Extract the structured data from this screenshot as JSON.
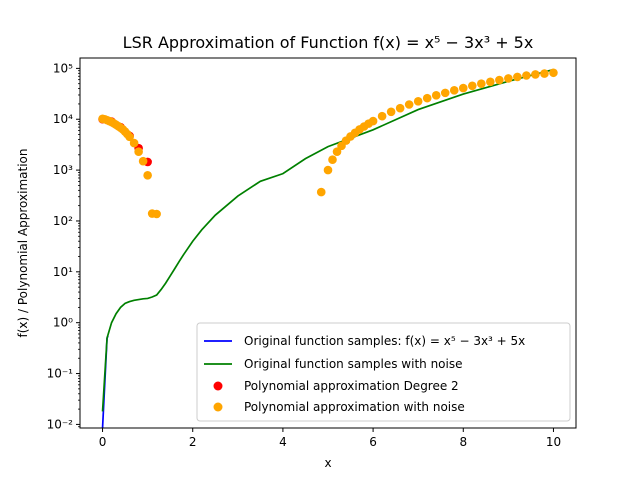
{
  "chart_data": {
    "type": "line",
    "title": "LSR Approximation of Function f(x) = x⁵ − 3x³ + 5x",
    "xlabel": "x",
    "ylabel": "f(x) / Polynomial Approximation",
    "xlim": [
      -0.5,
      10.5
    ],
    "ylim": [
      0.0085,
      160000
    ],
    "yscale": "log",
    "x_ticks": [
      0,
      2,
      4,
      6,
      8,
      10
    ],
    "x_tick_labels": [
      "0",
      "2",
      "4",
      "6",
      "8",
      "10"
    ],
    "y_ticks": [
      0.01,
      0.1,
      1,
      10,
      100,
      1000,
      10000,
      100000
    ],
    "y_tick_labels": [
      "10⁻²",
      "10⁻¹",
      "10⁰",
      "10¹",
      "10²",
      "10³",
      "10⁴",
      "10⁵"
    ],
    "grid": false,
    "legend_position": "lower-right",
    "series": [
      {
        "name": "Original function samples: f(x) = x⁵ − 3x³ + 5x",
        "kind": "line",
        "color": "#0000ff",
        "x": [
          0.0,
          0.1,
          0.12
        ],
        "y": [
          0.0085,
          0.497,
          0.55
        ]
      },
      {
        "name": "Original function samples with noise",
        "kind": "line",
        "color": "#008000",
        "x": [
          0.0,
          0.1,
          0.2,
          0.3,
          0.4,
          0.5,
          0.6,
          0.7,
          0.8,
          0.9,
          1.0,
          1.1,
          1.2,
          1.3,
          1.4,
          1.5,
          1.6,
          1.7,
          1.8,
          2.0,
          2.2,
          2.5,
          3.0,
          3.5,
          4.0,
          4.5,
          5.0,
          6.0,
          7.0,
          8.0,
          9.0,
          10.0
        ],
        "y": [
          0.018,
          0.5,
          1.0,
          1.5,
          2.0,
          2.4,
          2.6,
          2.75,
          2.85,
          2.95,
          3.0,
          3.2,
          3.5,
          4.5,
          6.0,
          8.3,
          11.5,
          16.0,
          22.0,
          40.0,
          67.0,
          130.0,
          309.0,
          603.0,
          852.0,
          1680.0,
          2900.0,
          6200.0,
          15500.0,
          31200.0,
          55600.0,
          95000.0
        ]
      },
      {
        "name": "Polynomial approximation Degree 2",
        "kind": "scatter",
        "color": "#ff0000",
        "x": [
          0.0,
          0.2,
          0.4,
          0.6,
          0.8,
          1.0
        ],
        "y": [
          10000,
          9000,
          7000,
          4700,
          2700,
          1450
        ]
      },
      {
        "name": "Polynomial approximation with noise",
        "kind": "scatter",
        "color": "#ffa500",
        "x": [
          0.0,
          0.05,
          0.1,
          0.15,
          0.2,
          0.25,
          0.3,
          0.35,
          0.4,
          0.45,
          0.5,
          0.55,
          0.6,
          0.7,
          0.8,
          0.9,
          1.0,
          1.1,
          1.2,
          4.85,
          5.0,
          5.1,
          5.2,
          5.3,
          5.4,
          5.5,
          5.6,
          5.7,
          5.8,
          5.9,
          6.0,
          6.2,
          6.4,
          6.6,
          6.8,
          7.0,
          7.2,
          7.4,
          7.6,
          7.8,
          8.0,
          8.2,
          8.4,
          8.6,
          8.8,
          9.0,
          9.2,
          9.4,
          9.6,
          9.8,
          10.0
        ],
        "y": [
          10200,
          10000,
          9600,
          9200,
          8800,
          8300,
          7800,
          7300,
          6800,
          6300,
          5700,
          5100,
          4500,
          3400,
          2300,
          1500,
          790,
          140,
          137,
          370,
          1000,
          1600,
          2300,
          3000,
          3800,
          4600,
          5400,
          6300,
          7200,
          8200,
          9200,
          11500,
          14000,
          16500,
          19500,
          22500,
          26000,
          29500,
          33000,
          37000,
          41000,
          45500,
          50000,
          54500,
          59000,
          63500,
          68000,
          72500,
          76000,
          79000,
          82000
        ]
      }
    ]
  }
}
